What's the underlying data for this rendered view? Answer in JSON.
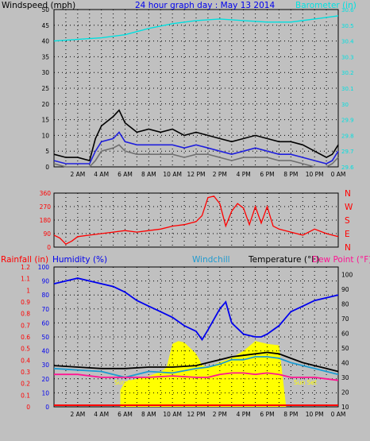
{
  "chart_data": [
    {
      "type": "line",
      "title": "24 hour graph day : May 13 2014",
      "left_axis_label": "Windspeed (mph)",
      "right_axis_label": "Barometer (in)",
      "left_ylim": [
        0,
        50
      ],
      "left_ticks": [
        "0",
        "5",
        "10",
        "15",
        "20",
        "25",
        "30",
        "35",
        "40",
        "45",
        "50"
      ],
      "right_ylim": [
        29.6,
        30.6
      ],
      "right_ticks": [
        "29.6",
        "29.7",
        "29.8",
        "29.9",
        "30",
        "30.1",
        "30.2",
        "30.3",
        "30.4",
        "30.5",
        "30.6"
      ],
      "x_ticks": [
        "2 AM",
        "4 AM",
        "6 AM",
        "8 AM",
        "10 AM",
        "12 PM",
        "2 PM",
        "4 PM",
        "6 PM",
        "8 PM",
        "10 PM",
        "0 AM"
      ],
      "xlim_hours": [
        0,
        24
      ],
      "grid": true,
      "series": [
        {
          "color": "#00e0e0",
          "axis": "right",
          "x": [
            0,
            2,
            4,
            6,
            8,
            10,
            12,
            14,
            16,
            18,
            20,
            22,
            24
          ],
          "values": [
            30.4,
            30.41,
            30.42,
            30.44,
            30.48,
            30.51,
            30.53,
            30.54,
            30.53,
            30.52,
            30.52,
            30.54,
            30.56
          ]
        },
        {
          "color": "#000000",
          "axis": "left",
          "x": [
            0,
            1,
            2,
            3,
            3.5,
            4,
            5,
            5.5,
            6,
            7,
            8,
            9,
            10,
            11,
            12,
            13,
            14,
            15,
            16,
            17,
            18,
            19,
            20,
            21,
            22,
            23,
            23.5,
            24
          ],
          "values": [
            4,
            3,
            3,
            2,
            9,
            13,
            16,
            18,
            14,
            11,
            12,
            11,
            12,
            10,
            11,
            10,
            9,
            8,
            9,
            10,
            9,
            8,
            8,
            7,
            5,
            3,
            4,
            7
          ]
        },
        {
          "color": "#1f1fdc",
          "axis": "left",
          "x": [
            0,
            1,
            2,
            3,
            3.5,
            4,
            5,
            5.5,
            6,
            7,
            8,
            9,
            10,
            11,
            12,
            13,
            14,
            15,
            16,
            17,
            18,
            19,
            20,
            21,
            22,
            23,
            23.5,
            24
          ],
          "values": [
            2,
            1,
            1,
            1,
            5,
            8,
            9,
            11,
            8,
            7,
            7,
            7,
            7,
            6,
            7,
            6,
            5,
            4,
            5,
            6,
            5,
            4,
            4,
            3,
            2,
            1,
            2,
            5
          ]
        },
        {
          "color": "#707070",
          "axis": "left",
          "x": [
            0,
            1,
            2,
            3,
            3.5,
            4,
            5,
            5.5,
            6,
            7,
            8,
            9,
            10,
            11,
            12,
            13,
            14,
            15,
            16,
            17,
            18,
            19,
            20,
            21,
            22,
            23,
            23.5,
            24
          ],
          "values": [
            1,
            0,
            0,
            0,
            2,
            5,
            6,
            7,
            5,
            4,
            4,
            4,
            4,
            3,
            4,
            4,
            3,
            2,
            3,
            3,
            3,
            2,
            2,
            1,
            0,
            0,
            1,
            3
          ]
        }
      ]
    },
    {
      "type": "line",
      "ylim": [
        0,
        360
      ],
      "left_ticks": [
        "0",
        "90",
        "180",
        "270",
        "360"
      ],
      "right_ticks": [
        "N",
        "W",
        "S",
        "E",
        "N"
      ],
      "x_ticks": [
        "2 AM",
        "4 AM",
        "6 AM",
        "8 AM",
        "10 AM",
        "12 PM",
        "2 PM",
        "4 PM",
        "6 PM",
        "8 PM",
        "10 PM",
        "0 AM"
      ],
      "xlim_hours": [
        0,
        24
      ],
      "grid": true,
      "series": [
        {
          "color": "#ff0000",
          "x": [
            0,
            0.5,
            1,
            1.5,
            2,
            3,
            4,
            5,
            6,
            7,
            8,
            9,
            10,
            11,
            12,
            12.5,
            13,
            13.5,
            14,
            14.5,
            15,
            15.5,
            16,
            16.5,
            17,
            17.5,
            18,
            18.5,
            19,
            20,
            21,
            22,
            23,
            24
          ],
          "values": [
            80,
            60,
            20,
            40,
            70,
            80,
            90,
            100,
            110,
            100,
            110,
            120,
            140,
            150,
            170,
            210,
            330,
            340,
            290,
            140,
            240,
            290,
            260,
            150,
            270,
            160,
            270,
            140,
            120,
            100,
            80,
            120,
            90,
            70
          ]
        }
      ]
    },
    {
      "type": "line",
      "left_axis_label_rain": "Rainfall (in)",
      "left_axis_label_humidity": "Humidity (%)",
      "windchill_label": "Windchill",
      "temperature_label": "Temperature (°F)",
      "dewpoint_label": "Dew Point (°F)",
      "rain_ticks": [
        "0",
        "0.1",
        "0.2",
        "0.3",
        "0.4",
        "0.5",
        "0.6",
        "0.7",
        "0.8",
        "0.9",
        "1",
        "1.1",
        "1.2"
      ],
      "humidity_ticks": [
        "0",
        "10",
        "20",
        "30",
        "40",
        "50",
        "60",
        "70",
        "80",
        "90",
        "100"
      ],
      "temp_ticks": [
        "10",
        "20",
        "30",
        "40",
        "50",
        "60",
        "70",
        "80",
        "90",
        "100"
      ],
      "temp_ylim": [
        10,
        105
      ],
      "humidity_ylim": [
        0,
        100
      ],
      "x_ticks": [
        "2 AM",
        "4 AM",
        "6 AM",
        "8 AM",
        "10 AM",
        "12 PM",
        "2 PM",
        "4 PM",
        "6 PM",
        "8 PM",
        "10 PM",
        "0 AM"
      ],
      "xlim_hours": [
        0,
        24
      ],
      "grid": true,
      "annotations": [
        "Sun Rise",
        "Sun Set"
      ],
      "sunrise_hour": 5.6,
      "sunset_hour": 19.6,
      "series": [
        {
          "color": "#0000ee",
          "axis": "humidity",
          "x": [
            0,
            1,
            2,
            3,
            4,
            5,
            6,
            7,
            8,
            9,
            10,
            11,
            12,
            12.5,
            13,
            14,
            14.5,
            15,
            16,
            17,
            17.5,
            18,
            19,
            20,
            21,
            22,
            23,
            24
          ],
          "values": [
            88,
            90,
            92,
            90,
            88,
            86,
            82,
            76,
            72,
            68,
            64,
            58,
            54,
            48,
            55,
            70,
            75,
            60,
            52,
            50,
            50,
            52,
            58,
            68,
            72,
            76,
            78,
            80
          ]
        },
        {
          "color": "#000000",
          "axis": "temp",
          "x": [
            0,
            2,
            4,
            6,
            8,
            10,
            12,
            13,
            14,
            15,
            16,
            17,
            18,
            19,
            20,
            21,
            22,
            23,
            24
          ],
          "values": [
            38,
            37,
            36,
            36,
            37,
            37,
            38,
            40,
            42,
            44,
            45,
            46,
            47,
            46,
            43,
            40,
            38,
            36,
            34
          ]
        },
        {
          "color": "#1e9ad0",
          "axis": "temp",
          "x": [
            0,
            2,
            4,
            6,
            8,
            10,
            12,
            13,
            14,
            15,
            16,
            17,
            18,
            19,
            20,
            21,
            22,
            23,
            24
          ],
          "values": [
            36,
            35,
            34,
            30,
            34,
            33,
            36,
            37,
            39,
            42,
            42,
            44,
            44,
            43,
            40,
            38,
            36,
            34,
            32
          ]
        },
        {
          "color": "#ff1493",
          "axis": "temp",
          "x": [
            0,
            2,
            4,
            6,
            8,
            10,
            12,
            13,
            14,
            15,
            16,
            17,
            18,
            19,
            20,
            21,
            22,
            23,
            24
          ],
          "values": [
            32,
            32,
            30,
            30,
            30,
            31,
            30,
            30,
            32,
            33,
            33,
            32,
            33,
            32,
            30,
            30,
            30,
            29,
            28
          ]
        },
        {
          "color": "#ffff00",
          "axis": "humidity",
          "type": "area",
          "x": [
            5.6,
            6,
            7,
            8,
            9,
            9.5,
            10,
            10.5,
            11,
            12,
            12.5,
            13,
            14,
            15,
            16,
            17,
            18,
            19,
            19.6
          ],
          "values": [
            12,
            18,
            20,
            22,
            25,
            28,
            45,
            47,
            46,
            38,
            30,
            28,
            32,
            35,
            40,
            47,
            45,
            44,
            0
          ]
        }
      ]
    }
  ]
}
